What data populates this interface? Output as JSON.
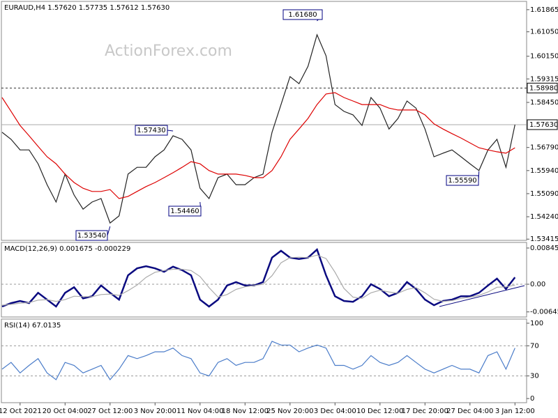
{
  "chart_data": [
    {
      "type": "line",
      "title": "EURAUD,H4 1.57620 1.57735 1.57612 1.57630",
      "watermark": "ActionForex.com",
      "ylim": [
        1.5337,
        1.6217
      ],
      "yticks": [
        1.61865,
        {
          "value": 1.6105,
          "label": "1.61050"
        },
        {
          "value": 1.6015,
          "label": "1.60150"
        },
        1.59315,
        {
          "value": 1.5845,
          "label": "1.58450"
        },
        {
          "value": 1.5679,
          "label": "1.56790"
        },
        {
          "value": 1.5594,
          "label": "1.55940"
        },
        {
          "value": 1.5509,
          "label": "1.55090"
        },
        {
          "value": 1.5424,
          "label": "1.54240"
        },
        1.53415
      ],
      "grid": false,
      "hlines": [
        {
          "value": 1.5898,
          "label": "1.58980"
        },
        {
          "value": 1.5763,
          "label": "1.57630"
        }
      ],
      "annotations": [
        "1.61680",
        "1.57430",
        "1.54460",
        "1.53540",
        "1.55590"
      ],
      "series": [
        {
          "color": "#222222",
          "values": [
            1.5735,
            1.5709,
            1.567,
            1.567,
            1.5619,
            1.5542,
            1.5478,
            1.5581,
            1.5504,
            1.5452,
            1.5478,
            1.5491,
            1.5401,
            1.5427,
            1.5581,
            1.5606,
            1.5606,
            1.5645,
            1.567,
            1.5722,
            1.5709,
            1.567,
            1.5529,
            1.5491,
            1.5568,
            1.5581,
            1.5542,
            1.5542,
            1.5568,
            1.5581,
            1.5735,
            1.5837,
            1.594,
            1.5914,
            1.5978,
            1.6094,
            1.6017,
            1.5837,
            1.5812,
            1.5799,
            1.576,
            1.5863,
            1.5824,
            1.5747,
            1.5786,
            1.585,
            1.5824,
            1.5747,
            1.5645,
            1.5658,
            1.567,
            1.5645,
            1.5619,
            1.5594,
            1.567,
            1.5709,
            1.5606,
            1.5763
          ]
        },
        {
          "color": "#dd0000",
          "values": [
            1.5863,
            1.5812,
            1.576,
            1.5722,
            1.5683,
            1.5645,
            1.5619,
            1.5581,
            1.555,
            1.5529,
            1.5517,
            1.5517,
            1.5524,
            1.5491,
            1.5499,
            1.5517,
            1.5535,
            1.555,
            1.5568,
            1.5586,
            1.5606,
            1.5627,
            1.5619,
            1.5594,
            1.5581,
            1.5581,
            1.5581,
            1.5576,
            1.5568,
            1.5568,
            1.5594,
            1.5645,
            1.5709,
            1.5747,
            1.5786,
            1.5837,
            1.5876,
            1.5881,
            1.5863,
            1.585,
            1.5837,
            1.5837,
            1.5837,
            1.5824,
            1.5817,
            1.5817,
            1.5817,
            1.5799,
            1.5766,
            1.5747,
            1.573,
            1.5714,
            1.5696,
            1.5678,
            1.567,
            1.5663,
            1.5658,
            1.5678
          ]
        }
      ]
    },
    {
      "type": "line",
      "title": "MACD(12,26,9) 0.001675 -0.000229",
      "ylim": [
        -0.00764,
        0.00975
      ],
      "yticks": [
        0.00845,
        {
          "value": 0,
          "label": "0.00"
        },
        -0.006454
      ],
      "grid": true,
      "series": [
        {
          "color": "#0a0a80",
          "values": [
            -0.0052,
            -0.0044,
            -0.0039,
            -0.0044,
            -0.002,
            -0.0036,
            -0.0052,
            -0.002,
            -0.0007,
            -0.0033,
            -0.0028,
            -0.0003,
            -0.002,
            -0.0036,
            0.0021,
            0.0037,
            0.0042,
            0.0037,
            0.0029,
            0.0041,
            0.0033,
            0.0021,
            -0.0036,
            -0.0052,
            -0.0036,
            -0.0003,
            0.0005,
            -0.0003,
            -0.0003,
            0.0005,
            0.0062,
            0.0078,
            0.0062,
            0.0059,
            0.0062,
            0.0081,
            0.0021,
            -0.0028,
            -0.0039,
            -0.0041,
            -0.0028,
            0.0,
            -0.0011,
            -0.0028,
            -0.002,
            0.0005,
            -0.0011,
            -0.0036,
            -0.0049,
            -0.0039,
            -0.0036,
            -0.0028,
            -0.0028,
            -0.002,
            -0.0003,
            0.0013,
            -0.0011,
            0.0016
          ]
        },
        {
          "color": "#aaaaaa",
          "values": [
            -0.0049,
            -0.0047,
            -0.0044,
            -0.0043,
            -0.0037,
            -0.0036,
            -0.004,
            -0.0036,
            -0.0028,
            -0.0029,
            -0.0029,
            -0.0024,
            -0.0023,
            -0.0026,
            -0.0015,
            -0.0002,
            0.0016,
            0.0028,
            0.0032,
            0.0035,
            0.0035,
            0.0032,
            0.0018,
            -0.0008,
            -0.003,
            -0.0024,
            -0.0012,
            -0.0006,
            -0.0003,
            0.0,
            0.002,
            0.005,
            0.0062,
            0.0063,
            0.0062,
            0.0068,
            0.006,
            0.0028,
            -0.001,
            -0.003,
            -0.0033,
            -0.002,
            -0.0014,
            -0.0018,
            -0.0021,
            -0.0012,
            -0.0008,
            -0.002,
            -0.0035,
            -0.004,
            -0.0038,
            -0.0033,
            -0.003,
            -0.0026,
            -0.0018,
            -0.0007,
            -0.0006,
            -0.0002
          ]
        }
      ]
    },
    {
      "type": "line",
      "title": "RSI(14) 67.0135",
      "ylim": [
        -5.5,
        105.5
      ],
      "yticks": [
        100,
        70,
        30,
        0
      ],
      "grid": true,
      "categories": [
        null,
        null,
        "12 Oct 2021",
        null,
        null,
        null,
        null,
        "20 Oct 04:00",
        null,
        null,
        null,
        null,
        "27 Oct 12:00",
        null,
        null,
        null,
        null,
        "3 Nov 20:00",
        null,
        null,
        null,
        null,
        "11 Nov 04:00",
        null,
        null,
        null,
        null,
        "18 Nov 12:00",
        null,
        null,
        null,
        null,
        "25 Nov 20:00",
        null,
        null,
        null,
        null,
        "3 Dec 04:00",
        null,
        null,
        null,
        null,
        "10 Dec 12:00",
        null,
        null,
        null,
        null,
        "17 Dec 20:00",
        null,
        null,
        null,
        null,
        "27 Dec 04:00",
        null,
        null,
        null,
        null,
        "3 Jan 12:00"
      ],
      "series": [
        {
          "color": "#4a7cc9",
          "values": [
            39,
            48,
            34,
            44,
            53,
            34,
            25,
            48,
            44,
            34,
            39,
            44,
            25,
            39,
            57,
            53,
            57,
            62,
            62,
            67,
            57,
            53,
            34,
            30,
            48,
            53,
            44,
            48,
            48,
            53,
            76,
            71,
            71,
            62,
            67,
            71,
            67,
            44,
            44,
            39,
            44,
            57,
            48,
            44,
            48,
            57,
            48,
            39,
            34,
            39,
            44,
            39,
            39,
            34,
            57,
            62,
            39,
            67
          ]
        }
      ]
    }
  ]
}
